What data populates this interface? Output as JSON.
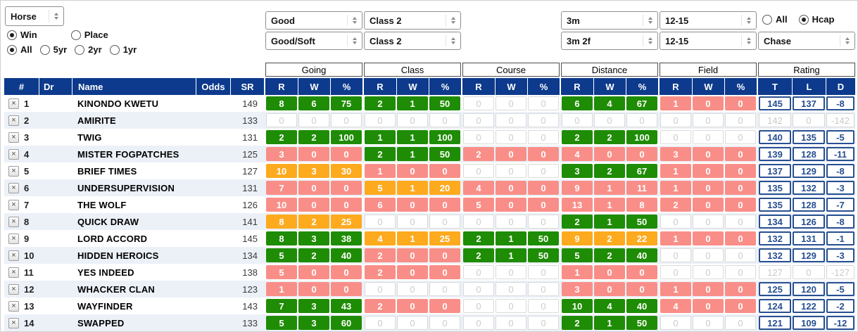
{
  "filters": {
    "entity_select": {
      "value": "Horse"
    },
    "bet_type": [
      {
        "label": "Win",
        "selected": true
      },
      {
        "label": "Place",
        "selected": false
      }
    ],
    "age_filter": [
      {
        "label": "All",
        "selected": true
      },
      {
        "label": "5yr",
        "selected": false
      },
      {
        "label": "2yr",
        "selected": false
      },
      {
        "label": "1yr",
        "selected": false
      }
    ],
    "going_selects": [
      "Good",
      "Good/Soft"
    ],
    "class_selects": [
      "Class 2",
      "Class 2"
    ],
    "distance_selects": [
      "3m",
      "3m 2f"
    ],
    "field_selects": [
      "12-15",
      "12-15"
    ],
    "hcap_filter": [
      {
        "label": "All",
        "selected": false
      },
      {
        "label": "Hcap",
        "selected": true
      }
    ],
    "race_type_select": {
      "value": "Chase"
    }
  },
  "table": {
    "left_headers": [
      "#",
      "Dr",
      "Name",
      "Odds",
      "SR"
    ],
    "groups": [
      "Going",
      "Class",
      "Course",
      "Distance",
      "Field"
    ],
    "rating_group": "Rating",
    "stat_subheaders": [
      "R",
      "W",
      "%"
    ],
    "rating_subheaders": [
      "T",
      "L",
      "D"
    ],
    "close_label": "×",
    "rows": [
      {
        "num": "1",
        "dr": "",
        "name": "KINONDO KWETU",
        "odds": "",
        "sr": "149",
        "stats": [
          [
            "8",
            "6",
            "75",
            "green"
          ],
          [
            "2",
            "1",
            "50",
            "green"
          ],
          [
            "0",
            "0",
            "0",
            "none"
          ],
          [
            "6",
            "4",
            "67",
            "green"
          ],
          [
            "1",
            "0",
            "0",
            "red"
          ]
        ],
        "rating": [
          "145",
          "137",
          "-8"
        ],
        "rating_grayed": false
      },
      {
        "num": "2",
        "dr": "",
        "name": "AMIRITE",
        "odds": "",
        "sr": "133",
        "stats": [
          [
            "0",
            "0",
            "0",
            "none"
          ],
          [
            "0",
            "0",
            "0",
            "none"
          ],
          [
            "0",
            "0",
            "0",
            "none"
          ],
          [
            "0",
            "0",
            "0",
            "none"
          ],
          [
            "0",
            "0",
            "0",
            "none"
          ]
        ],
        "rating": [
          "142",
          "0",
          "-142"
        ],
        "rating_grayed": true
      },
      {
        "num": "3",
        "dr": "",
        "name": "TWIG",
        "odds": "",
        "sr": "131",
        "stats": [
          [
            "2",
            "2",
            "100",
            "green"
          ],
          [
            "1",
            "1",
            "100",
            "green"
          ],
          [
            "0",
            "0",
            "0",
            "none"
          ],
          [
            "2",
            "2",
            "100",
            "green"
          ],
          [
            "0",
            "0",
            "0",
            "none"
          ]
        ],
        "rating": [
          "140",
          "135",
          "-5"
        ],
        "rating_grayed": false
      },
      {
        "num": "4",
        "dr": "",
        "name": "MISTER FOGPATCHES",
        "odds": "",
        "sr": "125",
        "stats": [
          [
            "3",
            "0",
            "0",
            "red"
          ],
          [
            "2",
            "1",
            "50",
            "green"
          ],
          [
            "2",
            "0",
            "0",
            "red"
          ],
          [
            "4",
            "0",
            "0",
            "red"
          ],
          [
            "3",
            "0",
            "0",
            "red"
          ]
        ],
        "rating": [
          "139",
          "128",
          "-11"
        ],
        "rating_grayed": false
      },
      {
        "num": "5",
        "dr": "",
        "name": "BRIEF TIMES",
        "odds": "",
        "sr": "127",
        "stats": [
          [
            "10",
            "3",
            "30",
            "orange"
          ],
          [
            "1",
            "0",
            "0",
            "red"
          ],
          [
            "0",
            "0",
            "0",
            "none"
          ],
          [
            "3",
            "2",
            "67",
            "green"
          ],
          [
            "1",
            "0",
            "0",
            "red"
          ]
        ],
        "rating": [
          "137",
          "129",
          "-8"
        ],
        "rating_grayed": false
      },
      {
        "num": "6",
        "dr": "",
        "name": "UNDERSUPERVISION",
        "odds": "",
        "sr": "131",
        "stats": [
          [
            "7",
            "0",
            "0",
            "red"
          ],
          [
            "5",
            "1",
            "20",
            "orange"
          ],
          [
            "4",
            "0",
            "0",
            "red"
          ],
          [
            "9",
            "1",
            "11",
            "red"
          ],
          [
            "1",
            "0",
            "0",
            "red"
          ]
        ],
        "rating": [
          "135",
          "132",
          "-3"
        ],
        "rating_grayed": false
      },
      {
        "num": "7",
        "dr": "",
        "name": "THE WOLF",
        "odds": "",
        "sr": "126",
        "stats": [
          [
            "10",
            "0",
            "0",
            "red"
          ],
          [
            "6",
            "0",
            "0",
            "red"
          ],
          [
            "5",
            "0",
            "0",
            "red"
          ],
          [
            "13",
            "1",
            "8",
            "red"
          ],
          [
            "2",
            "0",
            "0",
            "red"
          ]
        ],
        "rating": [
          "135",
          "128",
          "-7"
        ],
        "rating_grayed": false
      },
      {
        "num": "8",
        "dr": "",
        "name": "QUICK DRAW",
        "odds": "",
        "sr": "141",
        "stats": [
          [
            "8",
            "2",
            "25",
            "orange"
          ],
          [
            "0",
            "0",
            "0",
            "none"
          ],
          [
            "0",
            "0",
            "0",
            "none"
          ],
          [
            "2",
            "1",
            "50",
            "green"
          ],
          [
            "0",
            "0",
            "0",
            "none"
          ]
        ],
        "rating": [
          "134",
          "126",
          "-8"
        ],
        "rating_grayed": false
      },
      {
        "num": "9",
        "dr": "",
        "name": "LORD ACCORD",
        "odds": "",
        "sr": "145",
        "stats": [
          [
            "8",
            "3",
            "38",
            "green"
          ],
          [
            "4",
            "1",
            "25",
            "orange"
          ],
          [
            "2",
            "1",
            "50",
            "green"
          ],
          [
            "9",
            "2",
            "22",
            "orange"
          ],
          [
            "1",
            "0",
            "0",
            "red"
          ]
        ],
        "rating": [
          "132",
          "131",
          "-1"
        ],
        "rating_grayed": false
      },
      {
        "num": "10",
        "dr": "",
        "name": "HIDDEN HEROICS",
        "odds": "",
        "sr": "134",
        "stats": [
          [
            "5",
            "2",
            "40",
            "green"
          ],
          [
            "2",
            "0",
            "0",
            "red"
          ],
          [
            "2",
            "1",
            "50",
            "green"
          ],
          [
            "5",
            "2",
            "40",
            "green"
          ],
          [
            "0",
            "0",
            "0",
            "none"
          ]
        ],
        "rating": [
          "132",
          "129",
          "-3"
        ],
        "rating_grayed": false
      },
      {
        "num": "11",
        "dr": "",
        "name": "YES INDEED",
        "odds": "",
        "sr": "138",
        "stats": [
          [
            "5",
            "0",
            "0",
            "red"
          ],
          [
            "2",
            "0",
            "0",
            "red"
          ],
          [
            "0",
            "0",
            "0",
            "none"
          ],
          [
            "1",
            "0",
            "0",
            "red"
          ],
          [
            "0",
            "0",
            "0",
            "none"
          ]
        ],
        "rating": [
          "127",
          "0",
          "-127"
        ],
        "rating_grayed": true
      },
      {
        "num": "12",
        "dr": "",
        "name": "WHACKER CLAN",
        "odds": "",
        "sr": "123",
        "stats": [
          [
            "1",
            "0",
            "0",
            "red"
          ],
          [
            "0",
            "0",
            "0",
            "none"
          ],
          [
            "0",
            "0",
            "0",
            "none"
          ],
          [
            "3",
            "0",
            "0",
            "red"
          ],
          [
            "1",
            "0",
            "0",
            "red"
          ]
        ],
        "rating": [
          "125",
          "120",
          "-5"
        ],
        "rating_grayed": false
      },
      {
        "num": "13",
        "dr": "",
        "name": "WAYFINDER",
        "odds": "",
        "sr": "143",
        "stats": [
          [
            "7",
            "3",
            "43",
            "green"
          ],
          [
            "2",
            "0",
            "0",
            "red"
          ],
          [
            "0",
            "0",
            "0",
            "none"
          ],
          [
            "10",
            "4",
            "40",
            "green"
          ],
          [
            "4",
            "0",
            "0",
            "red"
          ]
        ],
        "rating": [
          "124",
          "122",
          "-2"
        ],
        "rating_grayed": false
      },
      {
        "num": "14",
        "dr": "",
        "name": "SWAPPED",
        "odds": "",
        "sr": "133",
        "stats": [
          [
            "5",
            "3",
            "60",
            "green"
          ],
          [
            "0",
            "0",
            "0",
            "none"
          ],
          [
            "0",
            "0",
            "0",
            "none"
          ],
          [
            "2",
            "1",
            "50",
            "green"
          ],
          [
            "0",
            "0",
            "0",
            "none"
          ]
        ],
        "rating": [
          "121",
          "109",
          "-12"
        ],
        "rating_grayed": false
      }
    ]
  },
  "colors": {
    "header_navy": "#0d3a8c",
    "green": "#1e8c04",
    "orange": "#fdaa1f",
    "red": "#f98e88",
    "row_stripe": "#ecf1f8",
    "rating_blue": "#274f91"
  }
}
